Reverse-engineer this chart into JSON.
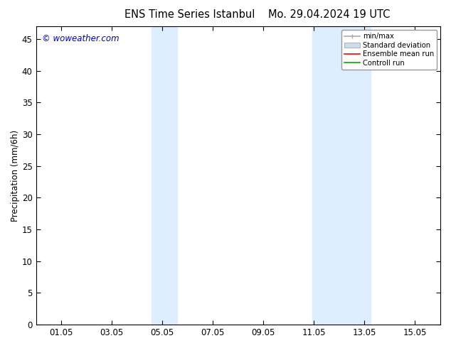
{
  "title_left": "ENS Time Series Istanbul",
  "title_right": "Mo. 29.04.2024 19 UTC",
  "ylabel": "Precipitation (mm/6h)",
  "watermark": "© woweather.com",
  "watermark_color": "#0000cc",
  "background_color": "#ffffff",
  "plot_bg_color": "#ffffff",
  "shaded_regions": [
    {
      "xstart": 4.58,
      "xend": 5.58,
      "color": "#ddeeff"
    },
    {
      "xstart": 10.92,
      "xend": 13.25,
      "color": "#ddeeff"
    }
  ],
  "ylim": [
    0,
    47
  ],
  "yticks": [
    0,
    5,
    10,
    15,
    20,
    25,
    30,
    35,
    40,
    45
  ],
  "xlim": [
    0,
    16
  ],
  "xtick_labels": [
    "01.05",
    "03.05",
    "05.05",
    "07.05",
    "09.05",
    "11.05",
    "13.05",
    "15.05"
  ],
  "xtick_positions": [
    1,
    3,
    5,
    7,
    9,
    11,
    13,
    15
  ],
  "legend_items": [
    {
      "label": "min/max",
      "color": "#aaaaaa",
      "lw": 1.2,
      "style": "minmax"
    },
    {
      "label": "Standard deviation",
      "color": "#ccddef",
      "lw": 8,
      "style": "band"
    },
    {
      "label": "Ensemble mean run",
      "color": "#ff0000",
      "lw": 1.2,
      "style": "line"
    },
    {
      "label": "Controll run",
      "color": "#00aa00",
      "lw": 1.2,
      "style": "line"
    }
  ],
  "tick_color": "#000000",
  "axis_color": "#000000",
  "font_size": 8.5,
  "title_font_size": 10.5
}
